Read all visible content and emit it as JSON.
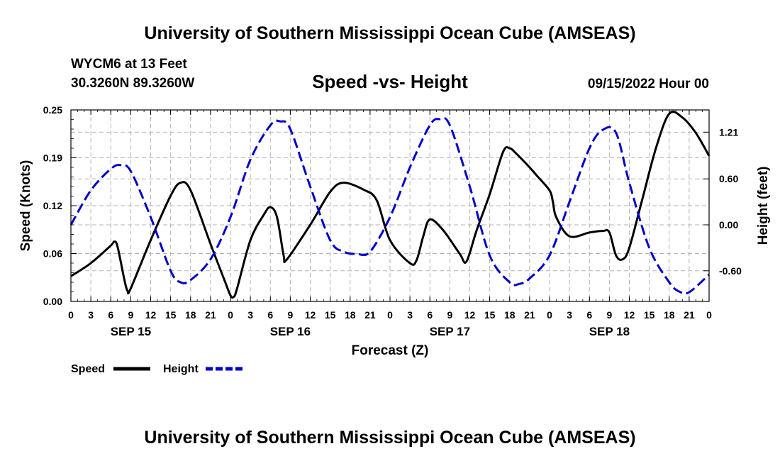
{
  "header": {
    "title": "University of Southern Mississippi Ocean Cube (AMSEAS)",
    "station": "WYCM6 at 13 Feet",
    "coords": "30.3260N  89.3260W",
    "plot_title": "Speed -vs- Height",
    "datetime": "09/15/2022 Hour 00"
  },
  "footer": {
    "title": "University of Southern Mississippi Ocean Cube (AMSEAS)"
  },
  "legend": {
    "speed_label": "Speed",
    "height_label": "Height",
    "speed_color": "#000000",
    "height_color": "#0000cc"
  },
  "chart_data": {
    "type": "line",
    "title": "Speed -vs- Height",
    "xlabel": "Forecast (Z)",
    "ylabel": "Speed (Knots)",
    "y2label": "Height (feet)",
    "xlim": [
      0,
      96
    ],
    "ylim": [
      0,
      0.25
    ],
    "y2lim": [
      -1.0,
      1.5
    ],
    "yticks": [
      "0.00",
      "0.06",
      "0.12",
      "0.19",
      "0.25"
    ],
    "yticks_values": [
      0,
      0.0625,
      0.125,
      0.1875,
      0.25
    ],
    "y2ticks": [
      "-0.60",
      "0.00",
      "0.60",
      "1.21"
    ],
    "y2ticks_values": [
      -0.6,
      0,
      0.6,
      1.21
    ],
    "x_tick_hours": [
      0,
      3,
      6,
      9,
      12,
      15,
      18,
      21,
      24,
      27,
      30,
      33,
      36,
      39,
      42,
      45,
      48,
      51,
      54,
      57,
      60,
      63,
      66,
      69,
      72,
      75,
      78,
      81,
      84,
      87,
      90,
      93,
      96
    ],
    "x_tick_labels": [
      "0",
      "3",
      "6",
      "9",
      "12",
      "15",
      "18",
      "21",
      "0",
      "3",
      "6",
      "9",
      "12",
      "15",
      "18",
      "21",
      "0",
      "3",
      "6",
      "9",
      "12",
      "15",
      "18",
      "21",
      "0",
      "3",
      "6",
      "9",
      "12",
      "15",
      "18",
      "21",
      "0"
    ],
    "day_labels": [
      {
        "label": "SEP 15",
        "hour": 9
      },
      {
        "label": "SEP 16",
        "hour": 33
      },
      {
        "label": "SEP 17",
        "hour": 57
      },
      {
        "label": "SEP 18",
        "hour": 81
      }
    ],
    "series": [
      {
        "name": "Speed",
        "axis": "left",
        "color": "#000000",
        "style": "solid",
        "x": [
          0,
          3,
          6,
          6.5,
          7,
          8,
          8.5,
          9,
          12,
          15,
          16.5,
          18,
          21,
          23,
          24,
          24.5,
          25,
          27,
          29,
          30,
          31,
          32,
          32.5,
          36,
          39,
          41,
          44,
          46,
          48,
          51,
          52,
          53,
          54,
          56,
          58.5,
          59.5,
          61,
          63,
          65,
          66,
          67,
          69,
          70,
          72,
          72.5,
          73,
          75,
          78,
          80,
          81,
          82,
          83,
          84,
          86,
          88,
          90,
          92,
          94,
          96
        ],
        "y": [
          0.033,
          0.05,
          0.073,
          0.078,
          0.072,
          0.03,
          0.014,
          0.017,
          0.08,
          0.138,
          0.155,
          0.145,
          0.075,
          0.03,
          0.008,
          0.006,
          0.017,
          0.08,
          0.113,
          0.123,
          0.11,
          0.06,
          0.055,
          0.1,
          0.143,
          0.155,
          0.146,
          0.132,
          0.08,
          0.05,
          0.054,
          0.085,
          0.107,
          0.093,
          0.062,
          0.052,
          0.092,
          0.14,
          0.195,
          0.2,
          0.193,
          0.175,
          0.165,
          0.145,
          0.13,
          0.11,
          0.085,
          0.09,
          0.092,
          0.09,
          0.06,
          0.055,
          0.07,
          0.135,
          0.2,
          0.245,
          0.24,
          0.22,
          0.19
        ]
      },
      {
        "name": "Height",
        "axis": "right",
        "color": "#0000cc",
        "style": "dashed",
        "x": [
          0,
          3,
          6,
          7.5,
          9,
          12,
          15,
          16.5,
          18,
          21,
          24,
          27,
          30,
          31.5,
          33,
          36,
          39,
          41,
          43,
          45,
          48,
          51,
          54,
          55.5,
          57,
          60,
          63,
          66,
          67.5,
          69,
          72,
          75,
          78,
          80,
          82,
          84,
          87,
          90,
          91.5,
          93,
          96
        ],
        "y": [
          0.0,
          0.45,
          0.73,
          0.78,
          0.7,
          0.1,
          -0.6,
          -0.75,
          -0.72,
          -0.45,
          0.1,
          0.85,
          1.3,
          1.35,
          1.25,
          0.5,
          -0.2,
          -0.35,
          -0.38,
          -0.35,
          0.1,
          0.75,
          1.3,
          1.38,
          1.3,
          0.5,
          -0.4,
          -0.75,
          -0.77,
          -0.7,
          -0.4,
          0.3,
          1.0,
          1.24,
          1.2,
          0.55,
          -0.3,
          -0.75,
          -0.87,
          -0.88,
          -0.65
        ]
      }
    ]
  }
}
